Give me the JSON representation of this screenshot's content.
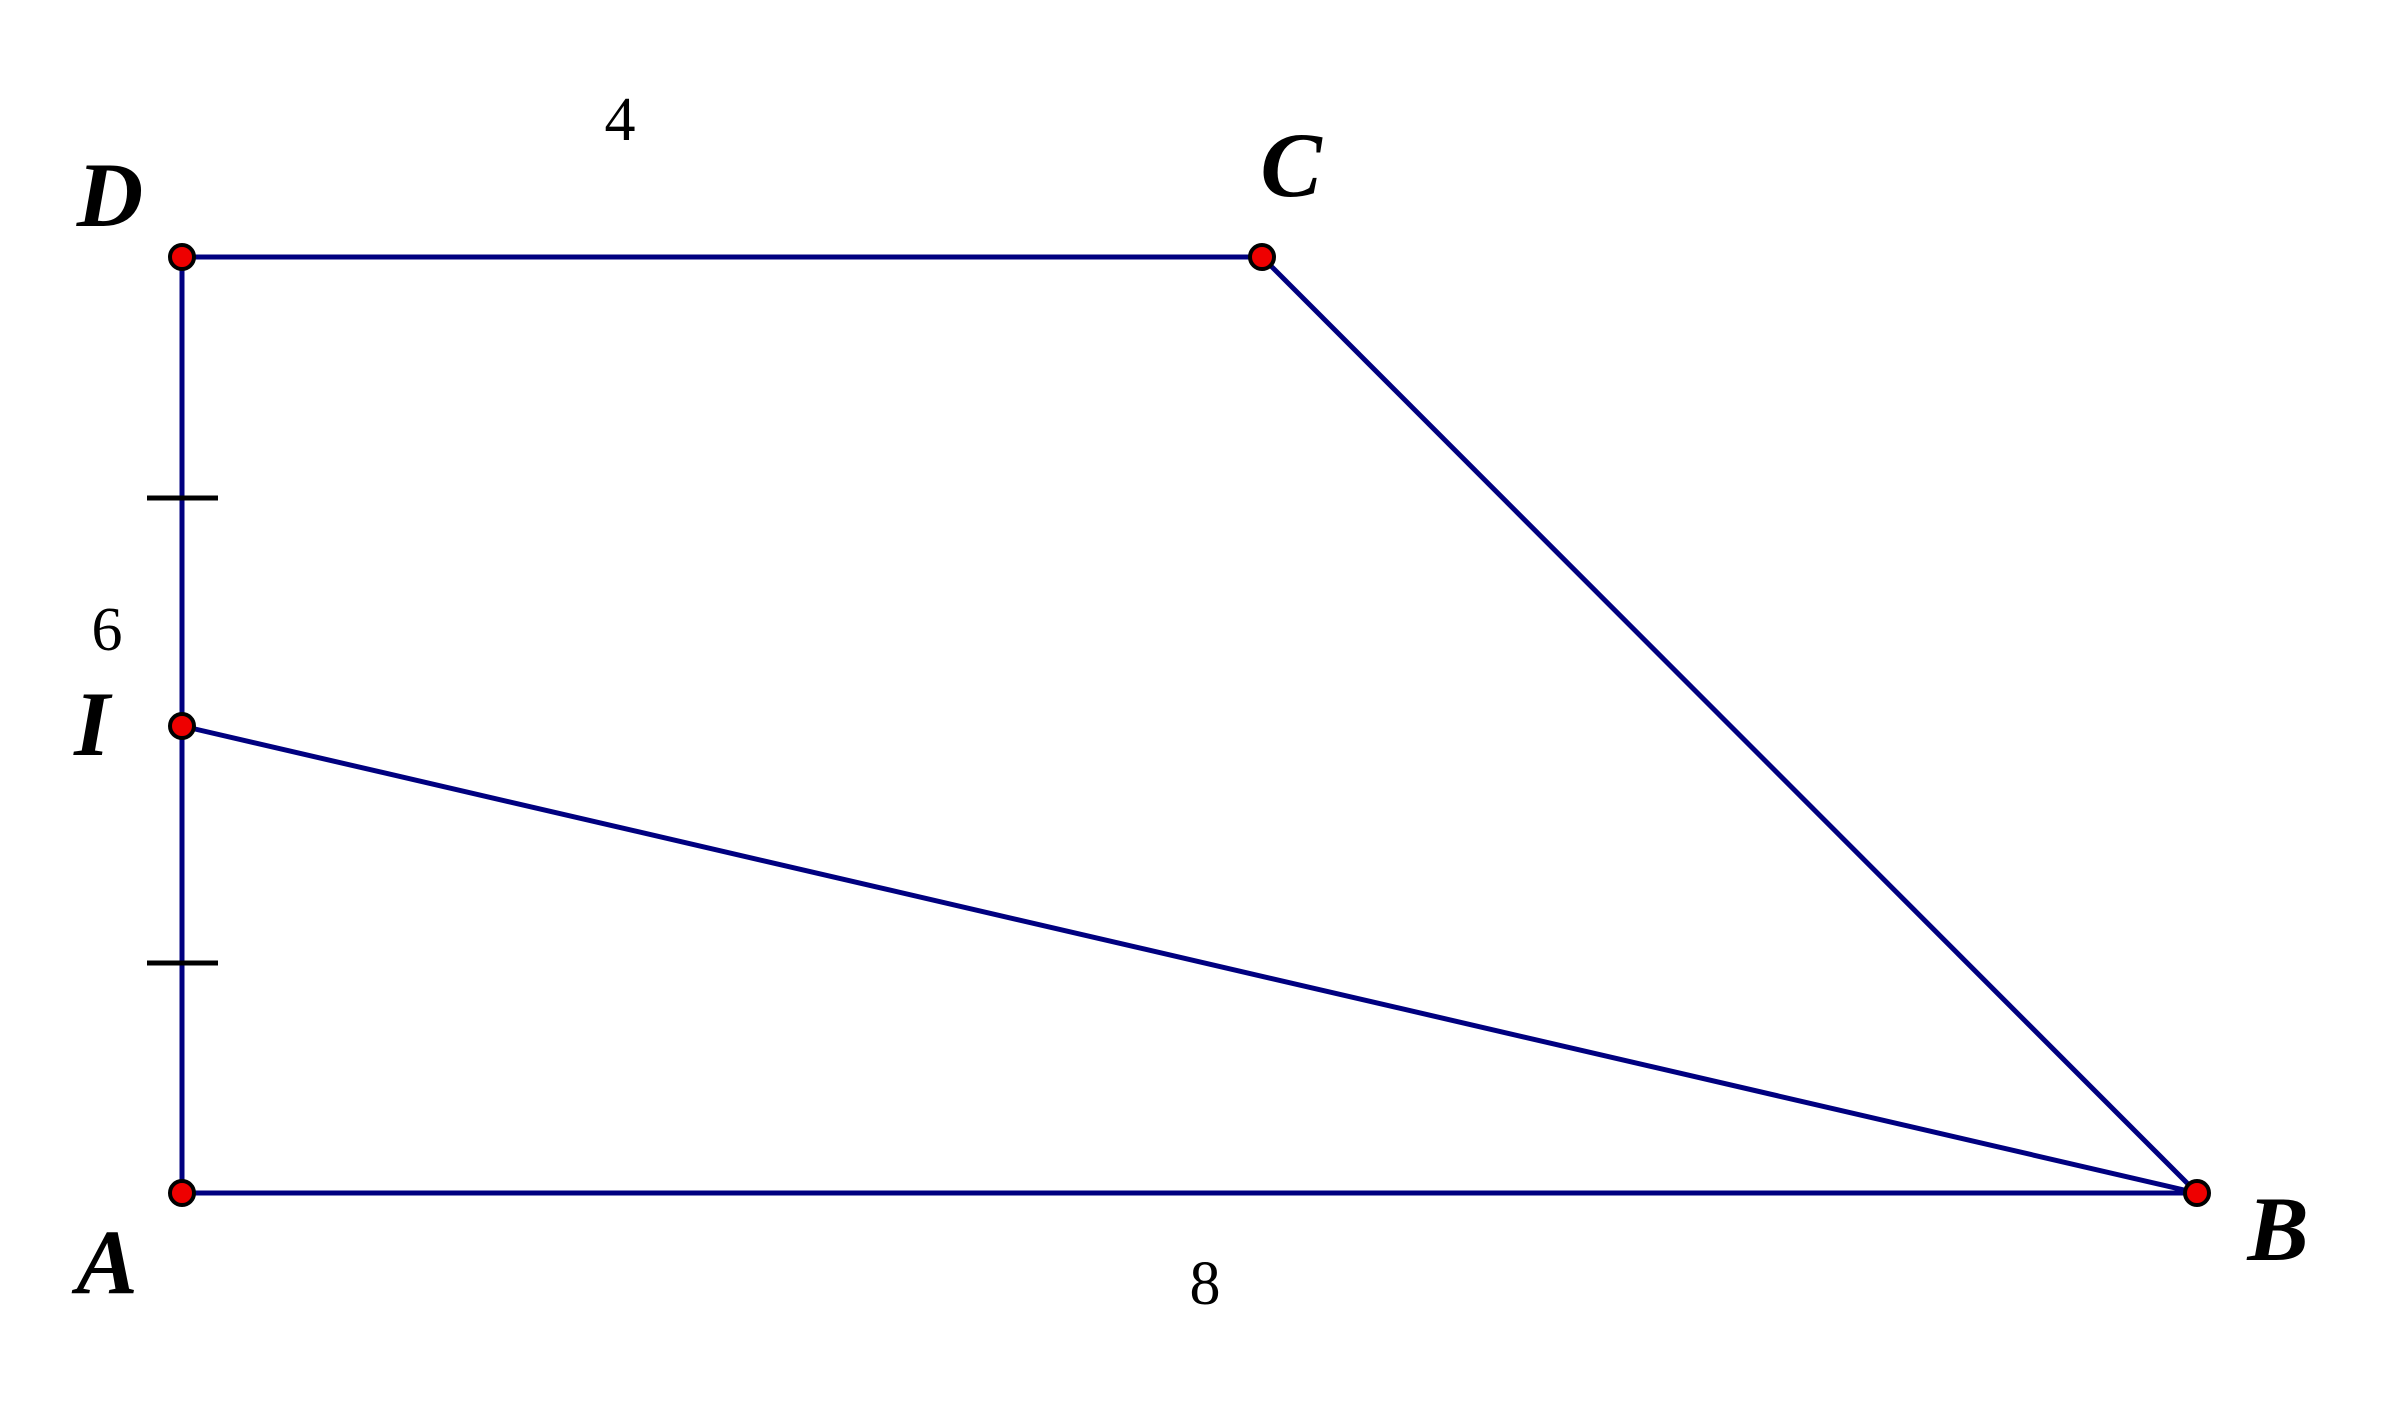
{
  "points": [
    {
      "label": "D"
    },
    {
      "label": "C"
    },
    {
      "label": "I"
    },
    {
      "label": "A"
    },
    {
      "label": "B"
    }
  ],
  "lengths": {
    "top": "4",
    "left": "6",
    "bottom": "8"
  }
}
